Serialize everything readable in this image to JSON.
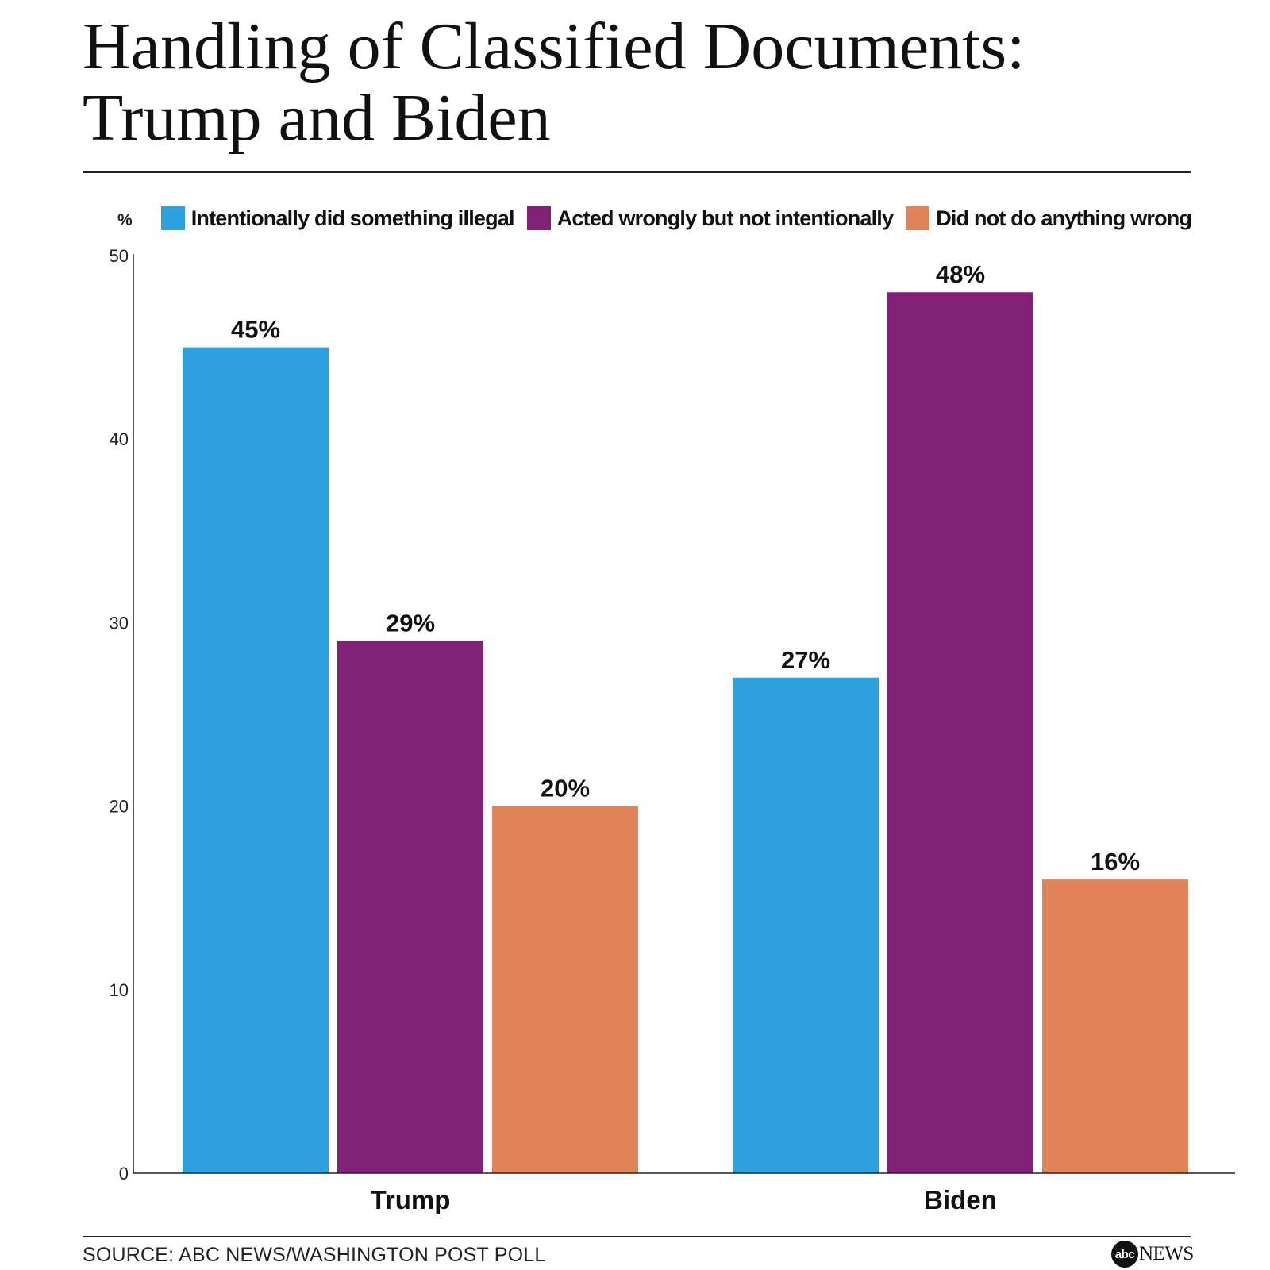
{
  "chart_data": {
    "type": "bar",
    "title": "Handling of Classified Documents: Trump and Biden",
    "title_lines": [
      "Handling of Classified Documents:",
      "Trump and Biden"
    ],
    "unit_label": "%",
    "categories": [
      "Trump",
      "Biden"
    ],
    "series": [
      {
        "name": "Intentionally did something illegal",
        "color": "#2E9FDF",
        "values": [
          45,
          27
        ],
        "labels": [
          "45%",
          "27%"
        ]
      },
      {
        "name": "Acted wrongly but not intentionally",
        "color": "#832177",
        "values": [
          29,
          48
        ],
        "labels": [
          "29%",
          "48%"
        ]
      },
      {
        "name": "Did not do anything wrong",
        "color": "#E2845A",
        "values": [
          20,
          16
        ],
        "labels": [
          "20%",
          "16%"
        ]
      }
    ],
    "ylim": [
      0,
      50
    ],
    "yticks": [
      0,
      10,
      20,
      30,
      40,
      50
    ],
    "xlabel": "",
    "ylabel": "%",
    "legend_position": "top"
  },
  "footer": {
    "source": "SOURCE: ABC NEWS/WASHINGTON POST POLL",
    "logo_abc": "abc",
    "logo_news": "NEWS"
  }
}
